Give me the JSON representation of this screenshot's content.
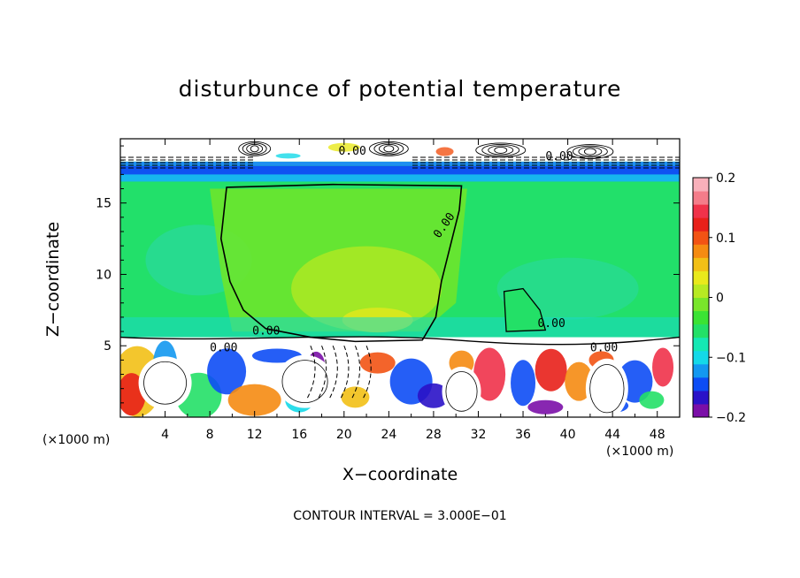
{
  "chart_data": {
    "type": "heatmap",
    "title": "disturbunce of potential temperature",
    "xlabel": "X−coordinate",
    "ylabel": "Z−coordinate",
    "x_unit": "(×1000 m)",
    "x_unit_right": "(×1000 m)",
    "xlim": [
      0,
      50
    ],
    "ylim": [
      0,
      19.5
    ],
    "x_ticks": [
      4,
      8,
      12,
      16,
      20,
      24,
      28,
      32,
      36,
      40,
      44,
      48
    ],
    "y_ticks": [
      5,
      10,
      15
    ],
    "colorbar": {
      "range": [
        -0.2,
        0.2
      ],
      "ticks": [
        0.2,
        0.1,
        0,
        -0.1,
        -0.2
      ],
      "tick_labels": [
        "0.2",
        "0.1",
        "0",
        "−0.1",
        "−0.2"
      ],
      "colors": [
        "#7b0fa8",
        "#2a12c8",
        "#0d4df5",
        "#1398f0",
        "#14d9e8",
        "#15e8b4",
        "#23e067",
        "#3be334",
        "#79e62b",
        "#b7ea23",
        "#e9e91c",
        "#f2c016",
        "#f58b12",
        "#f25314",
        "#e8201a",
        "#f0324a",
        "#f47c8a",
        "#f8b0ba"
      ]
    },
    "contour_labels": [
      "0.00",
      "0.00",
      "0.00",
      "0.00",
      "0.00",
      "0.00",
      "0.00"
    ],
    "footer": "CONTOUR INTERVAL = 3.000E−01"
  }
}
